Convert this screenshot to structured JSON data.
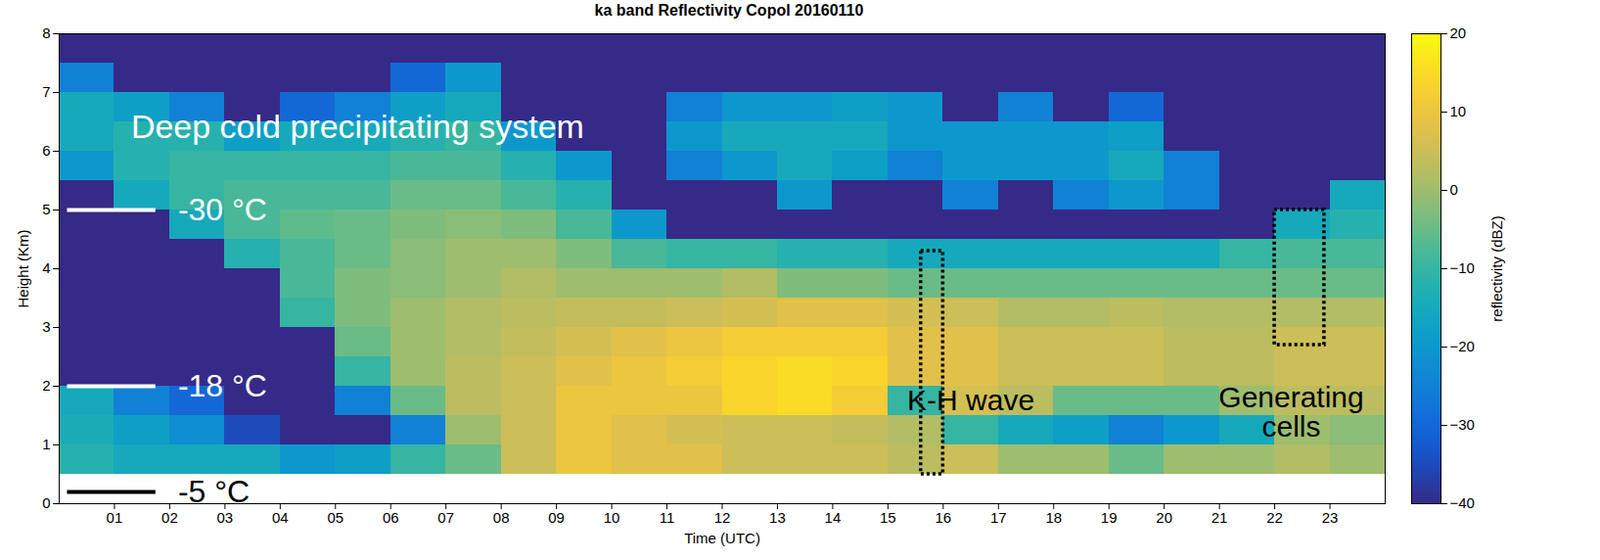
{
  "chart_data": {
    "type": "heatmap",
    "title": "ka band Reflectivity Copol 20160110",
    "x_label": "Time (UTC)",
    "y_label": "Height (Km)",
    "xlim": [
      0,
      24
    ],
    "xticks": [
      {
        "value": 1,
        "label": "01"
      },
      {
        "value": 2,
        "label": "02"
      },
      {
        "value": 3,
        "label": "03"
      },
      {
        "value": 4,
        "label": "04"
      },
      {
        "value": 5,
        "label": "05"
      },
      {
        "value": 6,
        "label": "06"
      },
      {
        "value": 7,
        "label": "07"
      },
      {
        "value": 8,
        "label": "08"
      },
      {
        "value": 9,
        "label": "09"
      },
      {
        "value": 10,
        "label": "10"
      },
      {
        "value": 11,
        "label": "11"
      },
      {
        "value": 12,
        "label": "12"
      },
      {
        "value": 13,
        "label": "13"
      },
      {
        "value": 14,
        "label": "14"
      },
      {
        "value": 15,
        "label": "15"
      },
      {
        "value": 16,
        "label": "16"
      },
      {
        "value": 17,
        "label": "17"
      },
      {
        "value": 18,
        "label": "18"
      },
      {
        "value": 19,
        "label": "19"
      },
      {
        "value": 20,
        "label": "20"
      },
      {
        "value": 21,
        "label": "21"
      },
      {
        "value": 22,
        "label": "22"
      },
      {
        "value": 23,
        "label": "23"
      }
    ],
    "ylim": [
      0,
      8
    ],
    "yticks": [
      0,
      1,
      2,
      3,
      4,
      5,
      6,
      7,
      8
    ],
    "time_bins": [
      0,
      1,
      2,
      3,
      4,
      5,
      6,
      7,
      8,
      9,
      10,
      11,
      12,
      13,
      14,
      15,
      16,
      17,
      18,
      19,
      20,
      21,
      22,
      23,
      24
    ],
    "height_bins": [
      0.5,
      1,
      1.5,
      2,
      2.5,
      3,
      3.5,
      4,
      4.5,
      5,
      5.5,
      6,
      6.5,
      7,
      7.5,
      8
    ],
    "z": [
      [
        -12,
        -14,
        -15,
        -40,
        -40,
        -40,
        -40,
        -40,
        -40,
        -40,
        -20,
        -15,
        -15,
        -25,
        -40
      ],
      [
        -15,
        -18,
        -25,
        -40,
        -40,
        -40,
        -40,
        -40,
        -40,
        -15,
        -12,
        -12,
        -18,
        -40,
        -40
      ],
      [
        -15,
        -22,
        -30,
        -40,
        -40,
        -40,
        -40,
        -40,
        -15,
        -10,
        -10,
        -12,
        -25,
        -40,
        -40
      ],
      [
        -15,
        -35,
        -40,
        -40,
        -40,
        -40,
        -40,
        -12,
        -8,
        -8,
        -10,
        -18,
        -40,
        -40,
        -40
      ],
      [
        -20,
        -40,
        -40,
        -40,
        -40,
        -10,
        -8,
        -8,
        -6,
        -8,
        -10,
        -15,
        -30,
        -40,
        -40
      ],
      [
        -18,
        -40,
        -25,
        -10,
        -5,
        -3,
        -3,
        -5,
        -5,
        -8,
        -10,
        -15,
        -25,
        -40,
        -40
      ],
      [
        -10,
        -25,
        -5,
        0,
        0,
        0,
        -2,
        -2,
        -3,
        -5,
        -8,
        -12,
        -18,
        -30,
        -40
      ],
      [
        -5,
        0,
        3,
        3,
        2,
        2,
        0,
        0,
        -2,
        -5,
        -8,
        -10,
        -15,
        -20,
        -40
      ],
      [
        5,
        5,
        5,
        5,
        4,
        3,
        2,
        0,
        -3,
        -8,
        -12,
        -20,
        -40,
        -40,
        -40
      ],
      [
        10,
        10,
        10,
        8,
        6,
        4,
        0,
        -3,
        -8,
        -12,
        -20,
        -40,
        -40,
        -40,
        -40
      ],
      [
        8,
        8,
        10,
        10,
        8,
        4,
        0,
        -8,
        -20,
        -40,
        -40,
        -40,
        -40,
        -40,
        -40
      ],
      [
        8,
        6,
        10,
        12,
        10,
        5,
        0,
        -10,
        -40,
        -40,
        -25,
        -20,
        -25,
        -40,
        -40
      ],
      [
        5,
        5,
        14,
        14,
        12,
        6,
        2,
        -10,
        -40,
        -40,
        -20,
        -15,
        -20,
        -40,
        -40
      ],
      [
        5,
        5,
        15,
        15,
        12,
        8,
        -3,
        -12,
        -40,
        -20,
        -15,
        -15,
        -20,
        -40,
        -40
      ],
      [
        5,
        4,
        12,
        14,
        12,
        8,
        -3,
        -12,
        -40,
        -40,
        -18,
        -15,
        -18,
        -40,
        -40
      ],
      [
        3,
        2,
        -10,
        8,
        8,
        6,
        -5,
        -15,
        -40,
        -40,
        -25,
        -20,
        -20,
        -40,
        -40
      ],
      [
        5,
        -10,
        6,
        8,
        8,
        5,
        -5,
        -15,
        -40,
        -25,
        -20,
        -20,
        -40,
        -40,
        -40
      ],
      [
        0,
        -15,
        3,
        5,
        5,
        2,
        -5,
        -15,
        -40,
        -40,
        -20,
        -20,
        -25,
        -40,
        -40
      ],
      [
        0,
        -18,
        -5,
        5,
        5,
        2,
        -5,
        -15,
        -40,
        -25,
        -20,
        -20,
        -40,
        -40,
        -40
      ],
      [
        -5,
        -25,
        -5,
        5,
        5,
        3,
        -5,
        -15,
        -40,
        -20,
        -15,
        -18,
        -30,
        -40,
        -40
      ],
      [
        0,
        -20,
        -5,
        3,
        3,
        2,
        -5,
        -15,
        -40,
        -25,
        -25,
        -40,
        -40,
        -40,
        -40
      ],
      [
        0,
        -15,
        0,
        3,
        3,
        2,
        -5,
        -10,
        -40,
        -40,
        -40,
        -40,
        -40,
        -40,
        -40
      ],
      [
        2,
        0,
        3,
        5,
        5,
        2,
        -5,
        -8,
        -15,
        -40,
        -40,
        -40,
        -40,
        -40,
        -40
      ],
      [
        0,
        -2,
        3,
        5,
        5,
        2,
        -5,
        -8,
        -12,
        -15,
        -40,
        -40,
        -40,
        -40,
        -40
      ]
    ],
    "colorbar": {
      "label": "reflectivity (dBZ)",
      "range": [
        -40,
        20
      ],
      "ticks": [
        -40,
        -30,
        -20,
        -10,
        0,
        10,
        20
      ]
    },
    "annotations": [
      {
        "text": "Deep cold precipitating system"
      }
    ],
    "isotherms": [
      {
        "label": "-30 °C",
        "height": 5,
        "color": "white"
      },
      {
        "label": "-18 °C",
        "height": 2,
        "color": "white"
      },
      {
        "label": "-5 °C",
        "height": 0.2,
        "color": "black"
      }
    ],
    "boxes": [
      {
        "label": "K-H wave",
        "x": [
          15.6,
          16
        ],
        "y": [
          0.5,
          4.3
        ]
      },
      {
        "label": "Generating cells",
        "x": [
          22,
          22.9
        ],
        "y": [
          2.7,
          5
        ]
      }
    ]
  }
}
